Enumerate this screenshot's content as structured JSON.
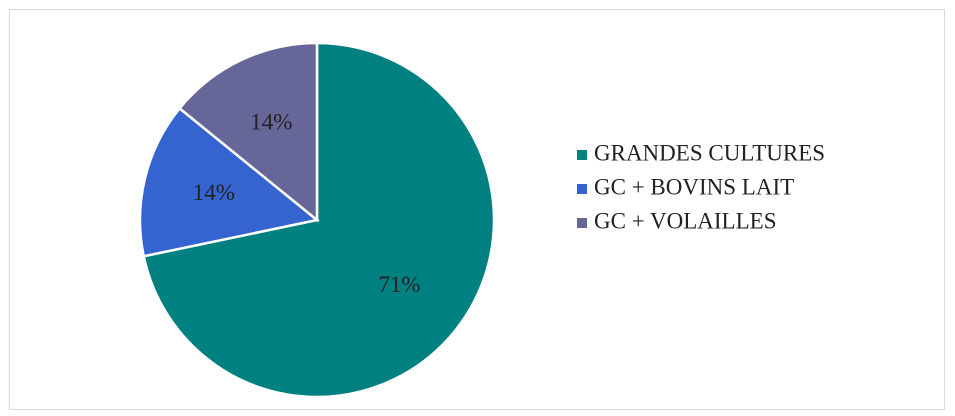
{
  "chart_data": {
    "type": "pie",
    "categories": [
      "GRANDES CULTURES",
      "GC + BOVINS LAIT",
      "GC + VOLAILLES"
    ],
    "values": [
      71,
      14,
      14
    ],
    "value_labels": [
      "71%",
      "14%",
      "14%"
    ],
    "colors": [
      "#008080",
      "#3563cf",
      "#666699"
    ],
    "legend": "right"
  }
}
